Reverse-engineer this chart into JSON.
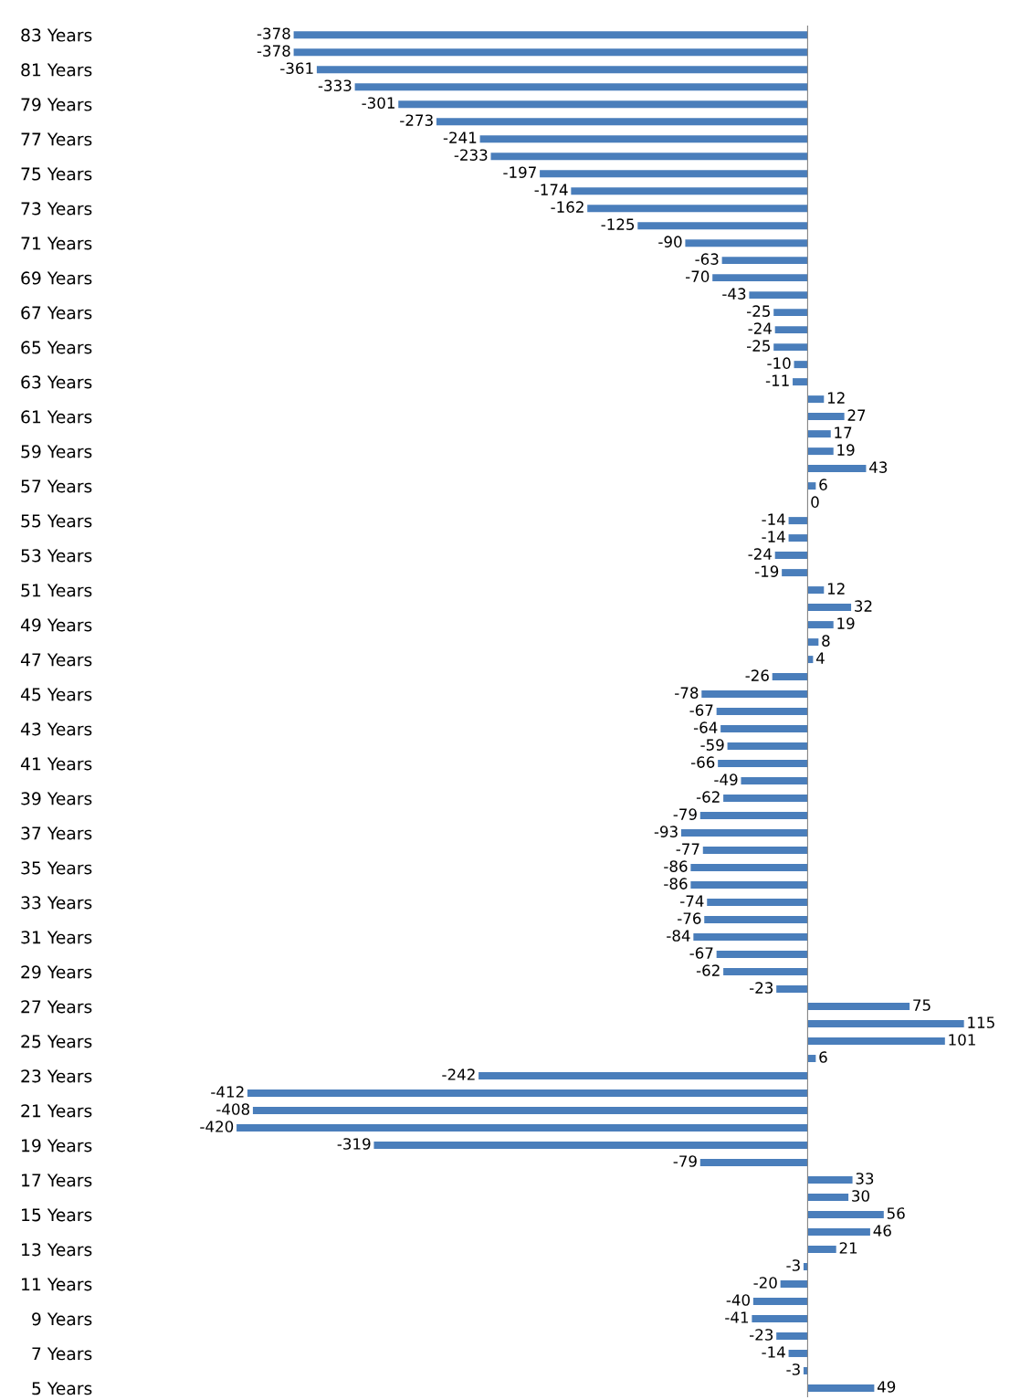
{
  "chart_data": {
    "type": "bar",
    "orientation": "horizontal",
    "categories": [
      "83 Years",
      null,
      "81 Years",
      null,
      "79 Years",
      null,
      "77 Years",
      null,
      "75 Years",
      null,
      "73 Years",
      null,
      "71 Years",
      null,
      "69 Years",
      null,
      "67 Years",
      null,
      "65 Years",
      null,
      "63 Years",
      null,
      "61 Years",
      null,
      "59 Years",
      null,
      "57 Years",
      null,
      "55 Years",
      null,
      "53 Years",
      null,
      "51 Years",
      null,
      "49 Years",
      null,
      "47 Years",
      null,
      "45 Years",
      null,
      "43 Years",
      null,
      "41 Years",
      null,
      "39 Years",
      null,
      "37 Years",
      null,
      "35 Years",
      null,
      "33 Years",
      null,
      "31 Years",
      null,
      "29 Years",
      null,
      "27 Years",
      null,
      "25 Years",
      null,
      "23 Years",
      null,
      "21 Years",
      null,
      "19 Years",
      null,
      "17 Years",
      null,
      "15 Years",
      null,
      "13 Years",
      null,
      "11 Years",
      null,
      "9 Years",
      null,
      "7 Years",
      null,
      "5 Years"
    ],
    "values": [
      -378,
      -378,
      -361,
      -333,
      -301,
      -273,
      -241,
      -233,
      -197,
      -174,
      -162,
      -125,
      -90,
      -63,
      -70,
      -43,
      -25,
      -24,
      -25,
      -10,
      -11,
      12,
      27,
      17,
      19,
      43,
      6,
      0,
      -14,
      -14,
      -24,
      -19,
      12,
      32,
      19,
      8,
      4,
      -26,
      -78,
      -67,
      -64,
      -59,
      -66,
      -49,
      -62,
      -79,
      -93,
      -77,
      -86,
      -86,
      -74,
      -76,
      -84,
      -67,
      -62,
      -23,
      75,
      115,
      101,
      6,
      -242,
      -412,
      -408,
      -420,
      -319,
      -79,
      33,
      30,
      56,
      46,
      21,
      -3,
      -20,
      -40,
      -41,
      -23,
      -14,
      -3,
      49
    ],
    "color": "#4a7ebb",
    "data_labels": true,
    "tick_labels": "y",
    "grid": false,
    "legend": false
  }
}
